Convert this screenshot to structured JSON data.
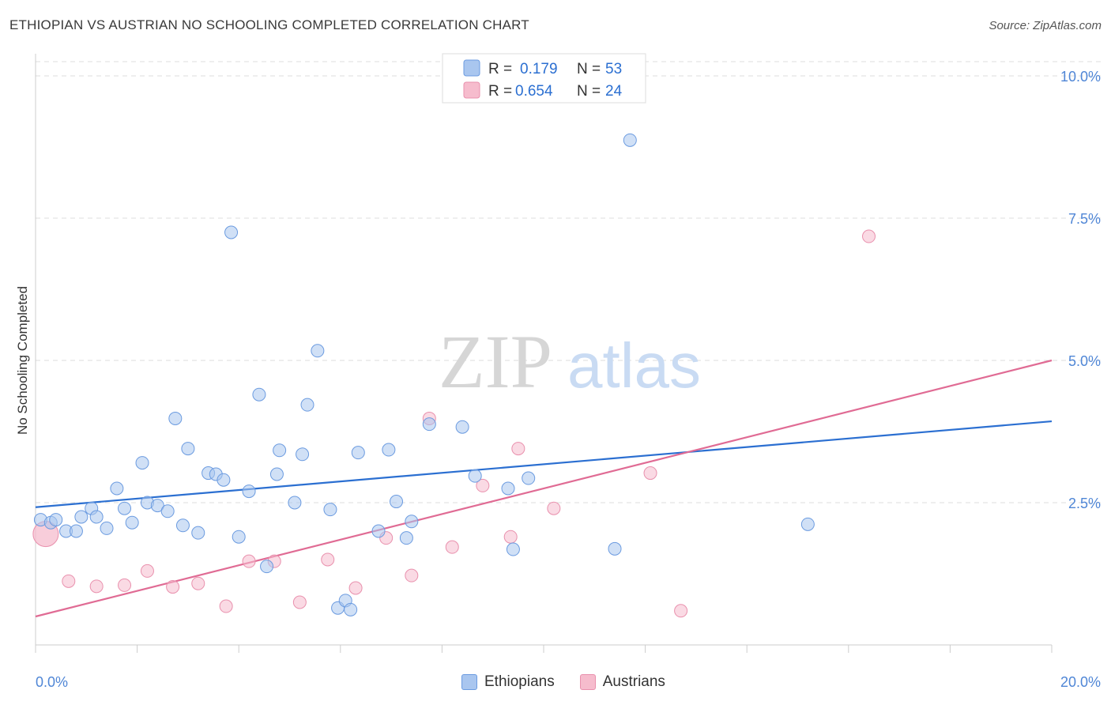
{
  "title": "ETHIOPIAN VS AUSTRIAN NO SCHOOLING COMPLETED CORRELATION CHART",
  "source": "Source: ZipAtlas.com",
  "watermark": {
    "zip": "ZIP",
    "atlas": "atlas"
  },
  "colors": {
    "ethiopians_fill": "#a9c6ef",
    "ethiopians_stroke": "#6b9be0",
    "ethiopians_line": "#2b6fd1",
    "austrians_fill": "#f6bccd",
    "austrians_stroke": "#e990ad",
    "austrians_line": "#e06b94",
    "grid": "#dddddd",
    "axis_text": "#4f86d6"
  },
  "chart_data": {
    "type": "scatter",
    "title": "ETHIOPIAN VS AUSTRIAN NO SCHOOLING COMPLETED CORRELATION CHART",
    "ylabel": "No Schooling Completed",
    "xlabel": "",
    "xlim": [
      0,
      20
    ],
    "ylim": [
      0,
      10.25
    ],
    "x_tick_labels": [
      "0.0%",
      "20.0%"
    ],
    "y_ticks": [
      2.5,
      5.0,
      7.5,
      10.0
    ],
    "y_tick_labels": [
      "2.5%",
      "5.0%",
      "7.5%",
      "10.0%"
    ],
    "legend_top": [
      {
        "r_label": "R =",
        "r_value": "0.179",
        "n_label": "N =",
        "n_value": "53"
      },
      {
        "r_label": "R =",
        "r_value": "0.654",
        "n_label": "N =",
        "n_value": "24"
      }
    ],
    "series": [
      {
        "name": "Ethiopians",
        "trend": {
          "x0": 0,
          "y0": 2.42,
          "x1": 20,
          "y1": 3.93
        },
        "points": [
          [
            0.1,
            2.2
          ],
          [
            0.3,
            2.15
          ],
          [
            0.4,
            2.2
          ],
          [
            0.6,
            2.0
          ],
          [
            0.8,
            2.0
          ],
          [
            0.9,
            2.25
          ],
          [
            1.1,
            2.4
          ],
          [
            1.2,
            2.25
          ],
          [
            1.4,
            2.05
          ],
          [
            1.6,
            2.75
          ],
          [
            1.75,
            2.4
          ],
          [
            1.9,
            2.15
          ],
          [
            2.1,
            3.2
          ],
          [
            2.2,
            2.5
          ],
          [
            2.4,
            2.45
          ],
          [
            2.6,
            2.35
          ],
          [
            2.75,
            3.98
          ],
          [
            2.9,
            2.1
          ],
          [
            3.0,
            3.45
          ],
          [
            3.2,
            1.97
          ],
          [
            3.4,
            3.02
          ],
          [
            3.55,
            3.0
          ],
          [
            3.7,
            2.9
          ],
          [
            3.85,
            7.25
          ],
          [
            4.0,
            1.9
          ],
          [
            4.2,
            2.7
          ],
          [
            4.4,
            4.4
          ],
          [
            4.55,
            1.38
          ],
          [
            4.75,
            3.0
          ],
          [
            4.8,
            3.42
          ],
          [
            5.1,
            2.5
          ],
          [
            5.25,
            3.35
          ],
          [
            5.35,
            4.22
          ],
          [
            5.55,
            5.17
          ],
          [
            5.8,
            2.38
          ],
          [
            5.95,
            0.65
          ],
          [
            6.1,
            0.78
          ],
          [
            6.2,
            0.62
          ],
          [
            6.35,
            3.38
          ],
          [
            6.75,
            2.0
          ],
          [
            6.95,
            3.43
          ],
          [
            7.1,
            2.52
          ],
          [
            7.3,
            1.88
          ],
          [
            7.4,
            2.17
          ],
          [
            7.75,
            3.88
          ],
          [
            8.4,
            3.83
          ],
          [
            8.65,
            2.97
          ],
          [
            9.3,
            2.75
          ],
          [
            9.4,
            1.68
          ],
          [
            9.7,
            2.93
          ],
          [
            11.4,
            1.69
          ],
          [
            11.7,
            8.87
          ],
          [
            15.2,
            2.12
          ]
        ]
      },
      {
        "name": "Austrians",
        "trend": {
          "x0": 0,
          "y0": 0.5,
          "x1": 20,
          "y1": 5.0
        },
        "points": [
          [
            0.2,
            1.95
          ],
          [
            0.65,
            1.12
          ],
          [
            1.2,
            1.03
          ],
          [
            1.75,
            1.05
          ],
          [
            2.2,
            1.3
          ],
          [
            2.7,
            1.02
          ],
          [
            3.2,
            1.08
          ],
          [
            3.75,
            0.68
          ],
          [
            4.2,
            1.47
          ],
          [
            4.7,
            1.47
          ],
          [
            5.2,
            0.75
          ],
          [
            5.75,
            1.5
          ],
          [
            6.3,
            1.0
          ],
          [
            6.9,
            1.88
          ],
          [
            7.4,
            1.22
          ],
          [
            7.75,
            3.98
          ],
          [
            8.2,
            1.72
          ],
          [
            8.8,
            2.8
          ],
          [
            9.35,
            1.9
          ],
          [
            9.5,
            3.45
          ],
          [
            10.2,
            2.4
          ],
          [
            12.1,
            3.02
          ],
          [
            12.7,
            0.6
          ],
          [
            16.4,
            7.18
          ]
        ]
      }
    ]
  }
}
